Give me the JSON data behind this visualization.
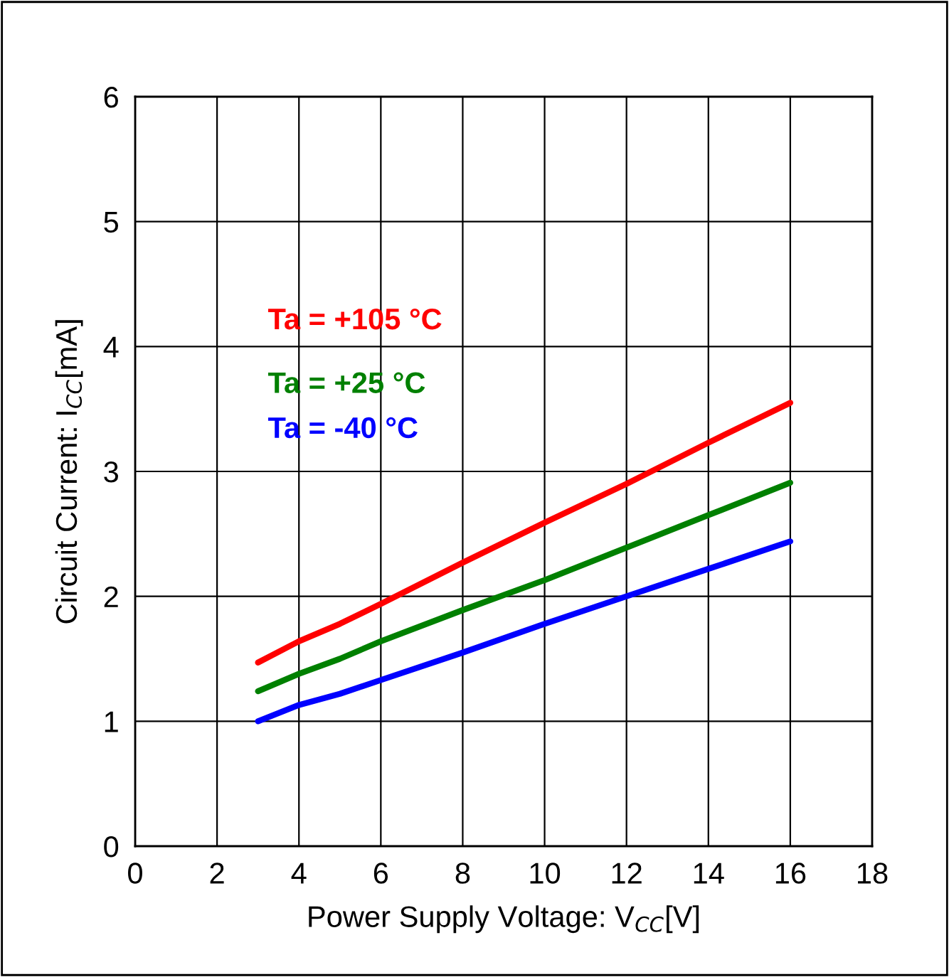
{
  "chart_data": {
    "type": "line",
    "xlabel": "Power Supply Voltage: V$_{CC}$[V]",
    "ylabel": "Circuit Current: I$_{CC}$[mA]",
    "xlim": [
      0,
      18
    ],
    "xticks": [
      0,
      2,
      4,
      6,
      8,
      10,
      12,
      14,
      16,
      18
    ],
    "ylim": [
      0,
      6
    ],
    "yticks": [
      0,
      1,
      2,
      3,
      4,
      5,
      6
    ],
    "grid": true,
    "marker": "none",
    "line_style": "solid",
    "series": [
      {
        "name": "Ta = +105 °C",
        "color": "#ff0000",
        "x": [
          3,
          4,
          5,
          6,
          8,
          10,
          12,
          14,
          16
        ],
        "values": [
          1.47,
          1.64,
          1.78,
          1.94,
          2.27,
          2.59,
          2.9,
          3.23,
          3.55
        ]
      },
      {
        "name": "Ta = +25 °C",
        "color": "#008000",
        "x": [
          3,
          4,
          5,
          6,
          8,
          10,
          12,
          14,
          16
        ],
        "values": [
          1.24,
          1.38,
          1.5,
          1.64,
          1.89,
          2.13,
          2.39,
          2.65,
          2.91
        ]
      },
      {
        "name": "Ta = -40 °C",
        "color": "#0000ff",
        "x": [
          3,
          4,
          5,
          6,
          8,
          10,
          12,
          14,
          16
        ],
        "values": [
          1.0,
          1.13,
          1.22,
          1.33,
          1.55,
          1.78,
          2.0,
          2.22,
          2.44
        ]
      }
    ]
  }
}
